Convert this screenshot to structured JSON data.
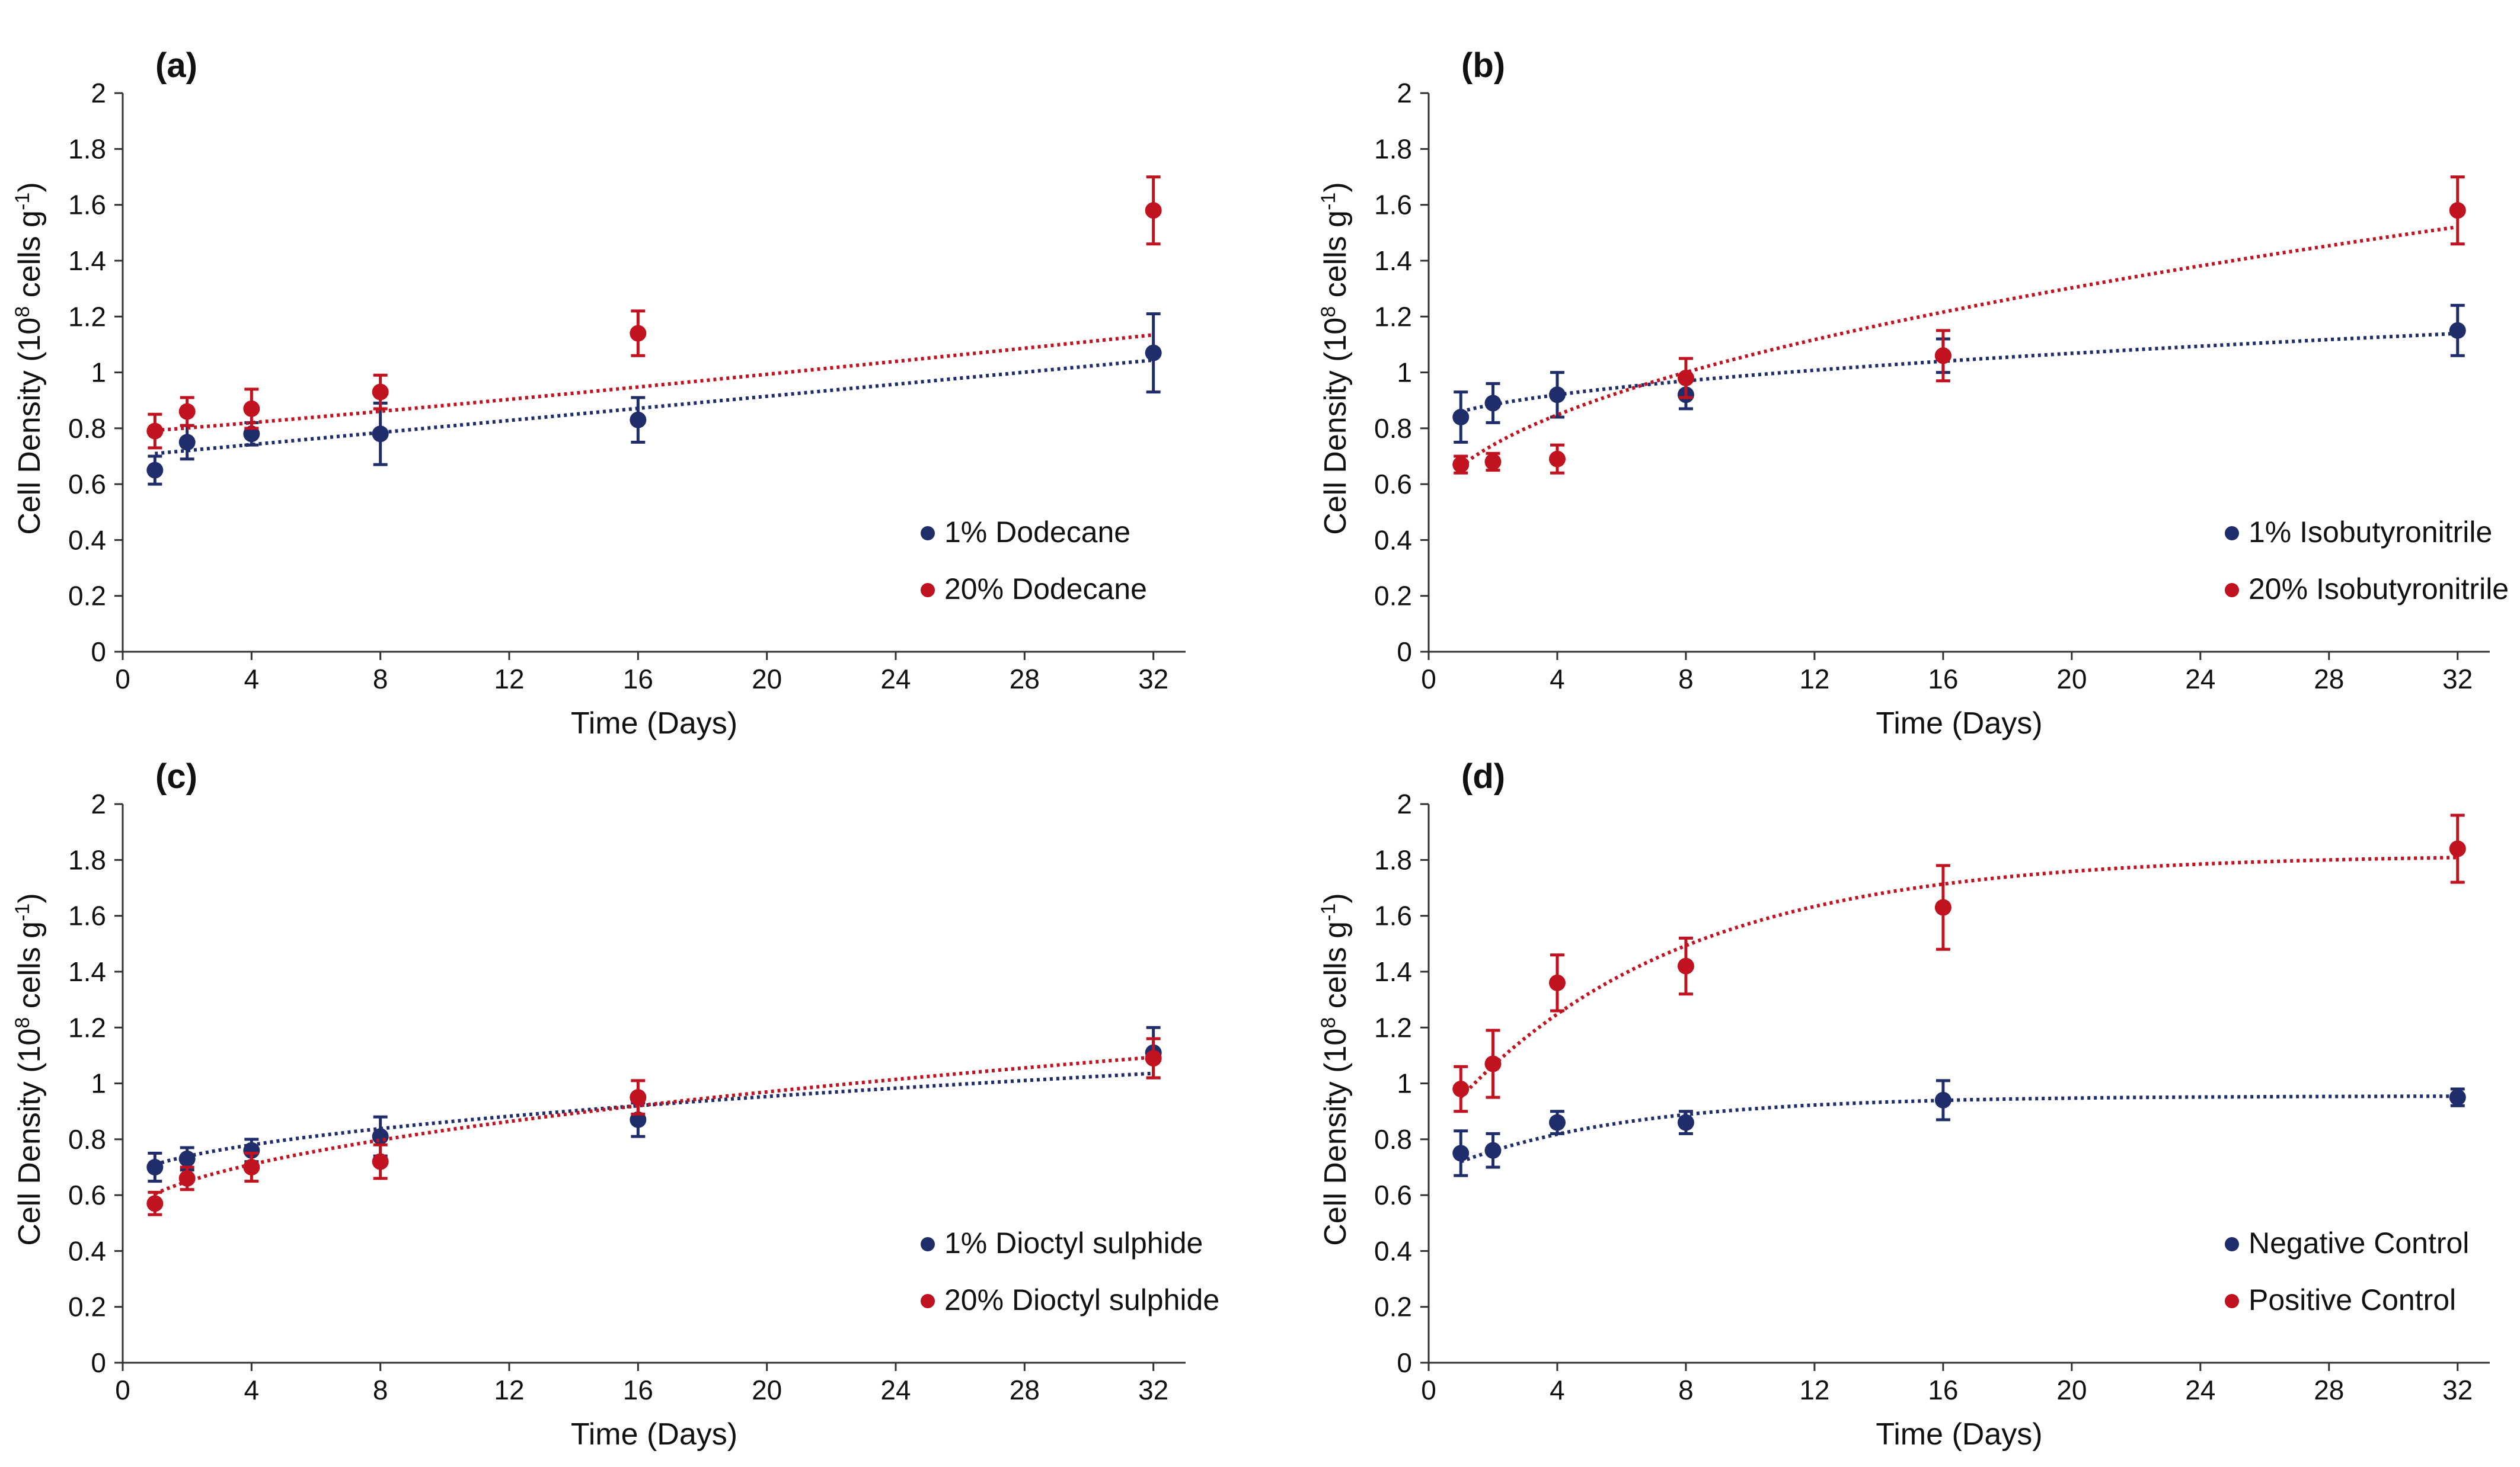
{
  "colors": {
    "navy": "#1f2d6b",
    "red": "#c1121f",
    "axis": "#333333"
  },
  "chart_data": [
    {
      "type": "scatter",
      "panel_label": "(a)",
      "xlabel": "Time (Days)",
      "ylabel_main": "Cell Density (10",
      "ylabel_sup1": "8",
      "ylabel_mid": " cells g",
      "ylabel_sup2": "-1",
      "ylabel_end": ")",
      "xlim": [
        0,
        33
      ],
      "ylim": [
        0,
        2.1
      ],
      "xticks": [
        0,
        4,
        8,
        12,
        16,
        20,
        24,
        28,
        32
      ],
      "yticks": [
        0,
        0.2,
        0.4,
        0.6,
        0.8,
        1,
        1.2,
        1.4,
        1.6,
        1.8,
        2
      ],
      "legend_position": "bottom-right",
      "series": [
        {
          "name": "1% Dodecane",
          "color": "#1f2d6b",
          "x": [
            1,
            2,
            4,
            8,
            16,
            32
          ],
          "y": [
            0.65,
            0.75,
            0.78,
            0.78,
            0.83,
            1.07
          ],
          "err": [
            0.05,
            0.06,
            0.04,
            0.11,
            0.08,
            0.14
          ],
          "trend": {
            "type": "linear",
            "a": 0.6985,
            "b": 0.0108
          }
        },
        {
          "name": "20% Dodecane",
          "color": "#c1121f",
          "x": [
            1,
            2,
            4,
            8,
            16,
            32
          ],
          "y": [
            0.79,
            0.86,
            0.87,
            0.93,
            1.14,
            1.58
          ],
          "err": [
            0.06,
            0.05,
            0.07,
            0.06,
            0.08,
            0.12
          ],
          "trend": {
            "type": "power",
            "a": 0.7846,
            "b": 0.00773,
            "p": 1.1
          }
        }
      ]
    },
    {
      "type": "scatter",
      "panel_label": "(b)",
      "xlabel": "Time (Days)",
      "ylabel_main": "Cell Density (10",
      "ylabel_sup1": "8",
      "ylabel_mid": " cells g",
      "ylabel_sup2": "-1",
      "ylabel_end": ")",
      "xlim": [
        0,
        33
      ],
      "ylim": [
        0,
        2.1
      ],
      "xticks": [
        0,
        4,
        8,
        12,
        16,
        20,
        24,
        28,
        32
      ],
      "yticks": [
        0,
        0.2,
        0.4,
        0.6,
        0.8,
        1,
        1.2,
        1.4,
        1.6,
        1.8,
        2
      ],
      "legend_position": "bottom-right",
      "series": [
        {
          "name": "1% Isobutyronitrile",
          "color": "#1f2d6b",
          "x": [
            1,
            2,
            4,
            8,
            16,
            32
          ],
          "y": [
            0.84,
            0.89,
            0.92,
            0.92,
            1.06,
            1.15
          ],
          "err": [
            0.09,
            0.07,
            0.08,
            0.05,
            0.06,
            0.09
          ],
          "trend": {
            "type": "sqrt",
            "a": 0.8,
            "b": 0.06
          }
        },
        {
          "name": "20% Isobutyronitrile",
          "color": "#c1121f",
          "x": [
            1,
            2,
            4,
            8,
            16,
            32
          ],
          "y": [
            0.67,
            0.68,
            0.69,
            0.98,
            1.06,
            1.58
          ],
          "err": [
            0.03,
            0.03,
            0.05,
            0.07,
            0.09,
            0.12
          ],
          "trend": {
            "type": "sqrt",
            "a": 0.48,
            "b": 0.184
          }
        }
      ]
    },
    {
      "type": "scatter",
      "panel_label": "(c)",
      "xlabel": "Time (Days)",
      "ylabel_main": "Cell Density (10",
      "ylabel_sup1": "8",
      "ylabel_mid": " cells g",
      "ylabel_sup2": "-1",
      "ylabel_end": ")",
      "xlim": [
        0,
        33
      ],
      "ylim": [
        0,
        2.1
      ],
      "xticks": [
        0,
        4,
        8,
        12,
        16,
        20,
        24,
        28,
        32
      ],
      "yticks": [
        0,
        0.2,
        0.4,
        0.6,
        0.8,
        1,
        1.2,
        1.4,
        1.6,
        1.8,
        2
      ],
      "legend_position": "bottom-right",
      "series": [
        {
          "name": "1% Dioctyl sulphide",
          "color": "#1f2d6b",
          "x": [
            1,
            2,
            4,
            8,
            16,
            32
          ],
          "y": [
            0.7,
            0.73,
            0.76,
            0.81,
            0.87,
            1.11
          ],
          "err": [
            0.05,
            0.04,
            0.04,
            0.07,
            0.06,
            0.09
          ],
          "trend": {
            "type": "sqrt",
            "a": 0.64,
            "b": 0.07
          }
        },
        {
          "name": "20% Dioctyl sulphide",
          "color": "#c1121f",
          "x": [
            1,
            2,
            4,
            8,
            16,
            32
          ],
          "y": [
            0.57,
            0.66,
            0.7,
            0.72,
            0.95,
            1.09
          ],
          "err": [
            0.04,
            0.04,
            0.05,
            0.06,
            0.06,
            0.07
          ],
          "trend": {
            "type": "sqrt",
            "a": 0.5,
            "b": 0.105
          }
        }
      ]
    },
    {
      "type": "scatter",
      "panel_label": "(d)",
      "xlabel": "Time (Days)",
      "ylabel_main": "Cell Density (10",
      "ylabel_sup1": "8",
      "ylabel_mid": " cells g",
      "ylabel_sup2": "-1",
      "ylabel_end": ")",
      "xlim": [
        0,
        33
      ],
      "ylim": [
        0,
        2.1
      ],
      "xticks": [
        0,
        4,
        8,
        12,
        16,
        20,
        24,
        28,
        32
      ],
      "yticks": [
        0,
        0.2,
        0.4,
        0.6,
        0.8,
        1,
        1.2,
        1.4,
        1.6,
        1.8,
        2
      ],
      "legend_position": "bottom-right",
      "series": [
        {
          "name": "Negative Control",
          "color": "#1f2d6b",
          "x": [
            1,
            2,
            4,
            8,
            16,
            32
          ],
          "y": [
            0.75,
            0.76,
            0.86,
            0.86,
            0.94,
            0.95
          ],
          "err": [
            0.08,
            0.06,
            0.04,
            0.04,
            0.07,
            0.03
          ],
          "trend": {
            "type": "exp",
            "ymax": 0.955,
            "a0": 0.72,
            "k": 0.18
          }
        },
        {
          "name": "Positive Control",
          "color": "#c1121f",
          "x": [
            1,
            2,
            4,
            8,
            16,
            32
          ],
          "y": [
            0.98,
            1.07,
            1.36,
            1.42,
            1.63,
            1.84
          ],
          "err": [
            0.08,
            0.12,
            0.1,
            0.1,
            0.15,
            0.12
          ],
          "trend": {
            "type": "exp",
            "ymax": 1.82,
            "a0": 0.95,
            "k": 0.14
          }
        }
      ]
    }
  ]
}
